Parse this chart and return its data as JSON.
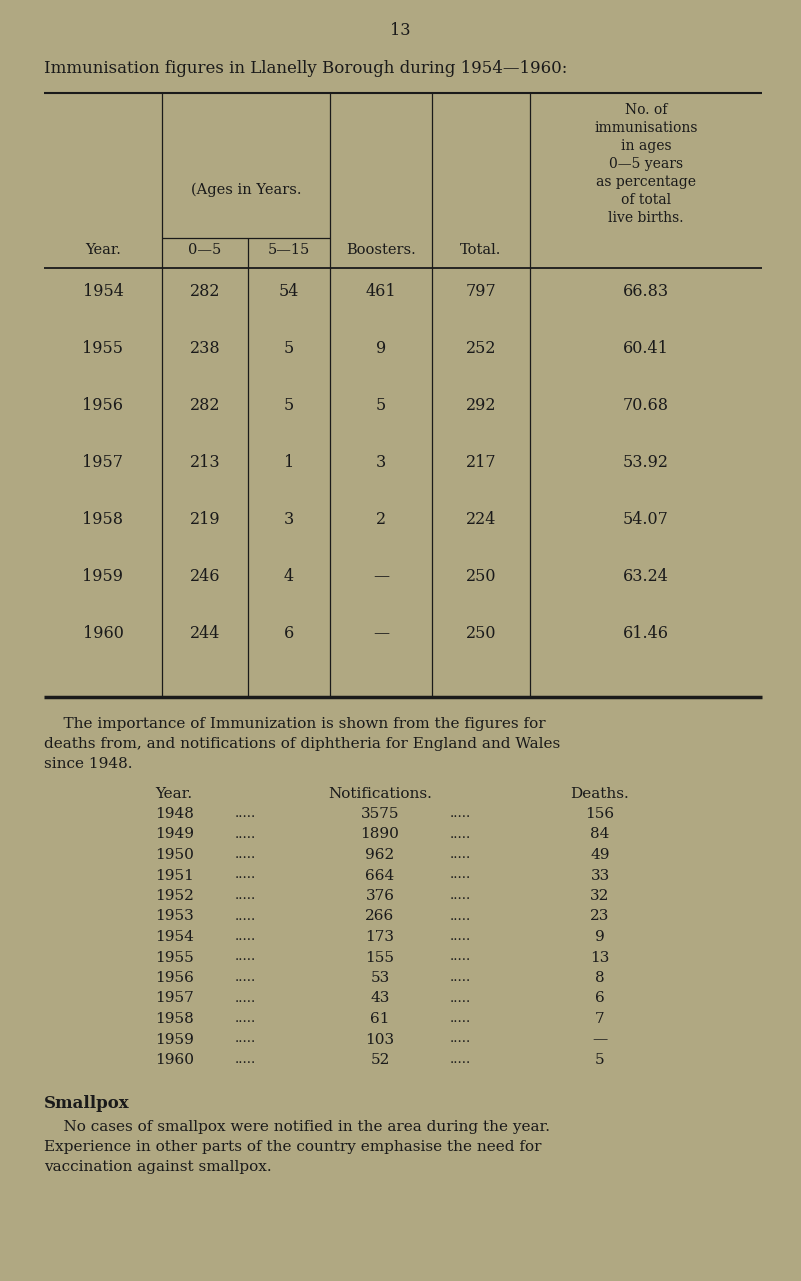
{
  "page_number": "13",
  "bg_color": "#b0a882",
  "text_color": "#1a1a1a",
  "title": "Immunisation figures in Llanelly Borough during 1954—1960:",
  "table1_subheader": "(Ages in Years.",
  "table1_col_headers": [
    "Year.",
    "0—5",
    "5—15",
    "Boosters.",
    "Total."
  ],
  "table1_last_col_lines": [
    "No. of",
    "immunisations",
    "in ages",
    "0—5 years",
    "as percentage",
    "of total",
    "live births."
  ],
  "table1_rows": [
    [
      "1954",
      "282",
      "54",
      "461",
      "797",
      "66.83"
    ],
    [
      "1955",
      "238",
      "5",
      "9",
      "252",
      "60.41"
    ],
    [
      "1956",
      "282",
      "5",
      "5",
      "292",
      "70.68"
    ],
    [
      "1957",
      "213",
      "1",
      "3",
      "217",
      "53.92"
    ],
    [
      "1958",
      "219",
      "3",
      "2",
      "224",
      "54.07"
    ],
    [
      "1959",
      "246",
      "4",
      "—",
      "250",
      "63.24"
    ],
    [
      "1960",
      "244",
      "6",
      "—",
      "250",
      "61.46"
    ]
  ],
  "para1_lines": [
    "    The importance of Immunization is shown from the figures for",
    "deaths from, and notifications of diphtheria for England and Wales",
    "since 1948."
  ],
  "table2_headers": [
    "Year.",
    "Notifications.",
    "Deaths."
  ],
  "table2_rows": [
    [
      "1948",
      "3575",
      "156"
    ],
    [
      "1949",
      "1890",
      "84"
    ],
    [
      "1950",
      "962",
      "49"
    ],
    [
      "1951",
      "664",
      "33"
    ],
    [
      "1952",
      "376",
      "32"
    ],
    [
      "1953",
      "266",
      "23"
    ],
    [
      "1954",
      "173",
      "9"
    ],
    [
      "1955",
      "155",
      "13"
    ],
    [
      "1956",
      "53",
      "8"
    ],
    [
      "1957",
      "43",
      "6"
    ],
    [
      "1958",
      "61",
      "7"
    ],
    [
      "1959",
      "103",
      "—"
    ],
    [
      "1960",
      "52",
      "5"
    ]
  ],
  "smallpox_heading": "Smallpox",
  "smallpox_para_lines": [
    "    No cases of smallpox were notified in the area during the year.",
    "Experience in other parts of the country emphasise the need for",
    "vaccination against smallpox."
  ]
}
